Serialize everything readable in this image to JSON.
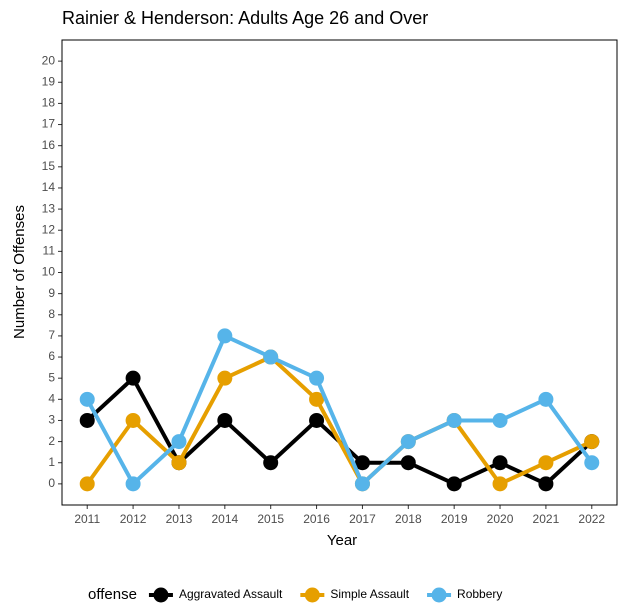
{
  "chart_data": {
    "type": "line",
    "title": "Rainier & Henderson: Adults Age 26 and Over",
    "x_label": "Year",
    "y_label": "Number of Offenses",
    "x": [
      2011,
      2012,
      2013,
      2014,
      2015,
      2016,
      2017,
      2018,
      2019,
      2020,
      2021,
      2022
    ],
    "series": [
      {
        "name": "Aggravated Assault",
        "color": "#000000",
        "values": [
          3,
          5,
          1,
          3,
          1,
          3,
          1,
          1,
          0,
          1,
          0,
          2
        ]
      },
      {
        "name": "Simple Assault",
        "color": "#E69F00",
        "values": [
          0,
          3,
          1,
          5,
          6,
          4,
          0,
          2,
          3,
          0,
          1,
          2
        ]
      },
      {
        "name": "Robbery",
        "color": "#56B4E9",
        "values": [
          4,
          0,
          2,
          7,
          6,
          5,
          0,
          2,
          3,
          3,
          4,
          1
        ]
      }
    ],
    "xlim": [
      2010.45,
      2022.55
    ],
    "xticks": [
      2011,
      2012,
      2013,
      2014,
      2015,
      2016,
      2017,
      2018,
      2019,
      2020,
      2021,
      2022
    ],
    "ylim": [
      -1,
      21
    ],
    "yticks": [
      0,
      1,
      2,
      3,
      4,
      5,
      6,
      7,
      8,
      9,
      10,
      11,
      12,
      13,
      14,
      15,
      16,
      17,
      18,
      19,
      20
    ],
    "legend_title": "offense",
    "legend_position": "bottom",
    "grid": false
  }
}
